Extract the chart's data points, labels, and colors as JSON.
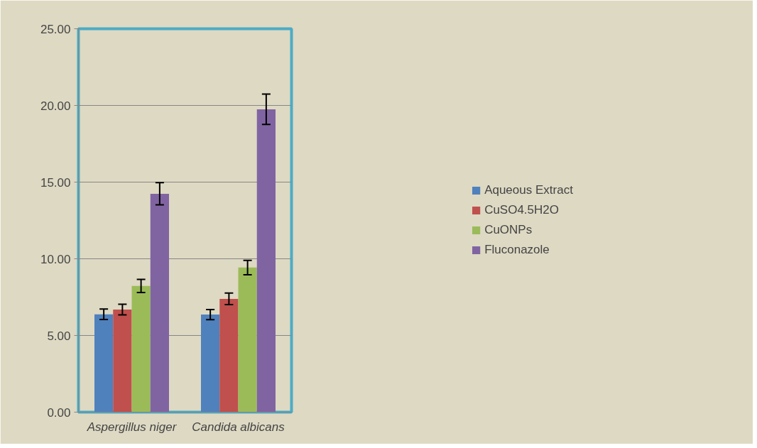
{
  "chart_data": {
    "type": "bar",
    "categories": [
      "Aspergillus niger",
      "Candida albicans"
    ],
    "series": [
      {
        "name": "Aqueous Extract",
        "color": "#4f81bd",
        "values": [
          6.38,
          6.36
        ],
        "errors": [
          0.34,
          0.33
        ]
      },
      {
        "name": "CuSO4.5H2O",
        "color": "#c0504d",
        "values": [
          6.69,
          7.39
        ],
        "errors": [
          0.35,
          0.38
        ]
      },
      {
        "name": "CuONPs",
        "color": "#9bbb59",
        "values": [
          8.23,
          9.43
        ],
        "errors": [
          0.43,
          0.47
        ]
      },
      {
        "name": "Fluconazole",
        "color": "#8064a2",
        "values": [
          14.24,
          19.75
        ],
        "errors": [
          0.72,
          0.99
        ]
      }
    ],
    "ylim": [
      0,
      25
    ],
    "yticks": [
      {
        "value": 0,
        "label": "0.00"
      },
      {
        "value": 5,
        "label": "5.00"
      },
      {
        "value": 10,
        "label": "10.00"
      },
      {
        "value": 15,
        "label": "15.00"
      },
      {
        "value": 20,
        "label": "20.00"
      },
      {
        "value": 25,
        "label": "25.00"
      }
    ],
    "grid": "y",
    "legend": "right"
  }
}
